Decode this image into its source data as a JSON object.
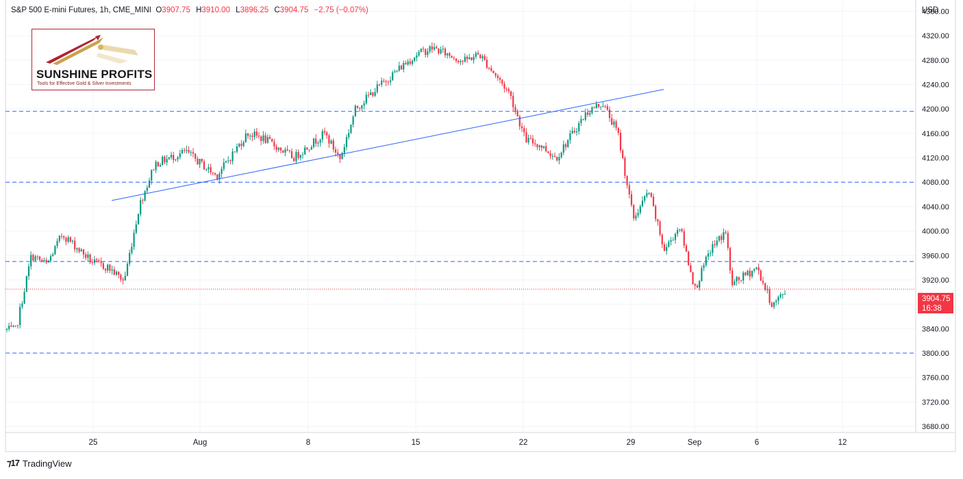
{
  "header": {
    "symbol": "S&P 500 E-mini Futures, 1h, CME_MINI",
    "open_label": "O",
    "open": "3907.75",
    "high_label": "H",
    "high": "3910.00",
    "low_label": "L",
    "low": "3896.25",
    "close_label": "C",
    "close": "3904.75",
    "change": "−2.75 (−0.07%)"
  },
  "logo": {
    "name": "SUNSHINE PROFITS",
    "tagline": "Tools for Effective Gold & Silver Investments"
  },
  "footer": {
    "brand": "TradingView",
    "icon": "tradingview-logo-icon"
  },
  "price_scale": {
    "currency": "USD"
  },
  "current_price": {
    "price": "3904.75",
    "countdown": "16:38",
    "color": "#f23645"
  },
  "colors": {
    "up": "#089981",
    "down": "#f23645",
    "level_line": "#2962ff",
    "trend_line": "#2962ff"
  },
  "chart_data": {
    "type": "candlestick",
    "title": "",
    "xlabel": "",
    "ylabel": "",
    "ylim": [
      3670,
      4375
    ],
    "y_ticks": [
      "3680.00",
      "3720.00",
      "3760.00",
      "3800.00",
      "3840.00",
      "3880.00",
      "3920.00",
      "3960.00",
      "4000.00",
      "4040.00",
      "4080.00",
      "4120.00",
      "4160.00",
      "4200.00",
      "4240.00",
      "4280.00",
      "4320.00",
      "4360.00"
    ],
    "x_ticks": [
      "25",
      "Aug",
      "8",
      "15",
      "22",
      "29",
      "Sep",
      "6",
      "12"
    ],
    "grid": true,
    "horizontal_levels": [
      4196,
      4080,
      3950,
      3800
    ],
    "trend_line": {
      "from": {
        "date": "Jul 27",
        "price": 4050
      },
      "to": {
        "date": "Aug 30",
        "price": 4232
      }
    },
    "price_path": [
      {
        "date": "Jul 20",
        "price": 3838
      },
      {
        "date": "Jul 21",
        "price": 3960
      },
      {
        "date": "Jul 22",
        "price": 3945
      },
      {
        "date": "Jul 23",
        "price": 3995
      },
      {
        "date": "Jul 25",
        "price": 3948
      },
      {
        "date": "Jul 26",
        "price": 3940
      },
      {
        "date": "Jul 27",
        "price": 3918
      },
      {
        "date": "Jul 28",
        "price": 4042
      },
      {
        "date": "Jul 29",
        "price": 4110
      },
      {
        "date": "Jul 31",
        "price": 4130
      },
      {
        "date": "Aug 2",
        "price": 4090
      },
      {
        "date": "Aug 4",
        "price": 4160
      },
      {
        "date": "Aug 5",
        "price": 4152
      },
      {
        "date": "Aug 7",
        "price": 4120
      },
      {
        "date": "Aug 9",
        "price": 4160
      },
      {
        "date": "Aug 10",
        "price": 4118
      },
      {
        "date": "Aug 11",
        "price": 4200
      },
      {
        "date": "Aug 12",
        "price": 4225
      },
      {
        "date": "Aug 14",
        "price": 4270
      },
      {
        "date": "Aug 15",
        "price": 4290
      },
      {
        "date": "Aug 16",
        "price": 4300
      },
      {
        "date": "Aug 18",
        "price": 4278
      },
      {
        "date": "Aug 19",
        "price": 4290
      },
      {
        "date": "Aug 21",
        "price": 4225
      },
      {
        "date": "Aug 22",
        "price": 4150
      },
      {
        "date": "Aug 23",
        "price": 4140
      },
      {
        "date": "Aug 24",
        "price": 4120
      },
      {
        "date": "Aug 26",
        "price": 4195
      },
      {
        "date": "Aug 27",
        "price": 4210
      },
      {
        "date": "Aug 28",
        "price": 4160
      },
      {
        "date": "Aug 29",
        "price": 4020
      },
      {
        "date": "Aug 30",
        "price": 4065
      },
      {
        "date": "Aug 31",
        "price": 3968
      },
      {
        "date": "Sep 1",
        "price": 4008
      },
      {
        "date": "Sep 2",
        "price": 3905
      },
      {
        "date": "Sep 3",
        "price": 3970
      },
      {
        "date": "Sep 4",
        "price": 4000
      },
      {
        "date": "Sep 4",
        "price": 3912
      },
      {
        "date": "Sep 6",
        "price": 3940
      },
      {
        "date": "Sep 7",
        "price": 3878
      },
      {
        "date": "Sep 8",
        "price": 3905
      }
    ]
  }
}
